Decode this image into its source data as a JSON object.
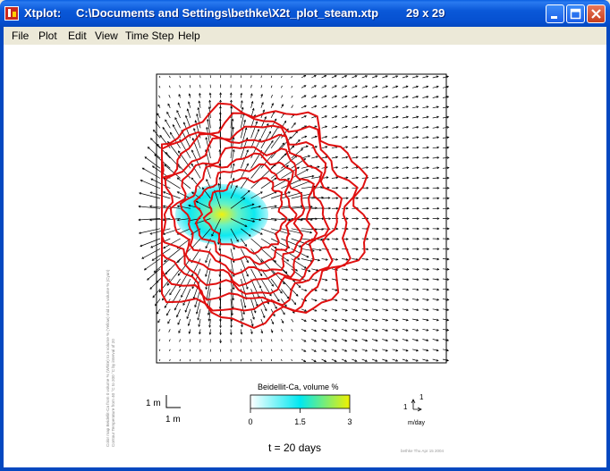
{
  "window": {
    "app_name": "Xtplot:",
    "file_path": "C:\\Documents and Settings\\bethke\\X2t_plot_steam.xtp",
    "grid_size": "29 x 29"
  },
  "menu": [
    "File",
    "Plot",
    "Edit",
    "View",
    "Time Step",
    "Help"
  ],
  "plot": {
    "side_caption": [
      "Color map Beidellit-Ca from 0 volume % (White) to 3 volume % (Yellow) mid 1.5 volume % (Cyan)",
      "Contour Temperature from 40 °C to 200 °C by interval of 20"
    ],
    "scale_vertical": "1 m",
    "scale_horizontal": "1 m",
    "colorbar_title": "Beidellit-Ca, volume  %",
    "colorbar_ticks": [
      "0",
      "1.5",
      "3"
    ],
    "colorbar_colors": [
      "#ffffff",
      "#00e8f0",
      "#f0f000"
    ],
    "velocity_labels": [
      "1",
      "1"
    ],
    "velocity_unit": "m/day",
    "time_label": "t = 20 days",
    "stamp": "bethke Thu Apr 15 2004",
    "contour_color": "#e01010"
  }
}
